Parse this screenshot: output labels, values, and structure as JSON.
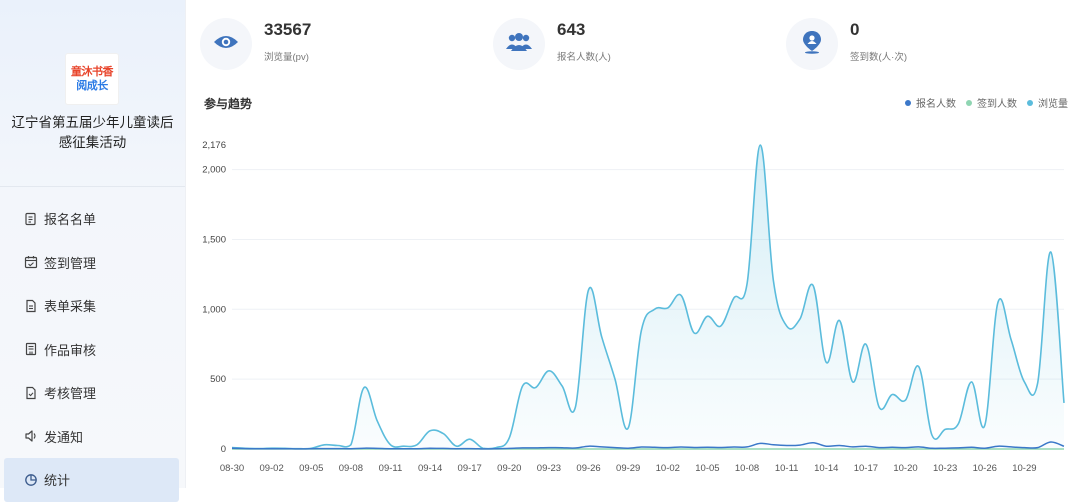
{
  "sidebar": {
    "logo_line1": "童沐书香",
    "logo_line2": "阅成长",
    "title": "辽宁省第五届少年儿童读后感征集活动",
    "items": [
      {
        "label": "报名名单",
        "icon": "list-icon"
      },
      {
        "label": "签到管理",
        "icon": "calendar-check-icon"
      },
      {
        "label": "表单采集",
        "icon": "form-icon"
      },
      {
        "label": "作品审核",
        "icon": "document-review-icon"
      },
      {
        "label": "考核管理",
        "icon": "assessment-icon"
      },
      {
        "label": "发通知",
        "icon": "speaker-icon"
      },
      {
        "label": "统计",
        "icon": "pie-chart-icon"
      }
    ],
    "active_item": "统计"
  },
  "stats": [
    {
      "value": "33567",
      "label": "浏览量(pv)",
      "icon": "eye-icon"
    },
    {
      "value": "643",
      "label": "报名人数(人)",
      "icon": "users-icon"
    },
    {
      "value": "0",
      "label": "签到数(人·次)",
      "icon": "location-person-icon"
    }
  ],
  "chart_title": "参与趋势",
  "colors": {
    "signup": "#3b78c9",
    "checkin": "#8fd5b2",
    "views": "#5bbcdc"
  },
  "chart_data": {
    "type": "area",
    "title": "参与趋势",
    "legend": [
      "报名人数",
      "签到人数",
      "浏览量"
    ],
    "legend_position": "top-right",
    "ylim": [
      0,
      2176
    ],
    "yticks": [
      0,
      500,
      1000,
      1500,
      2000,
      2176
    ],
    "ytick_labels": [
      "0",
      "500",
      "1,000",
      "1,500",
      "2,000",
      "2,176"
    ],
    "xtick_labels": [
      "08-30",
      "09-02",
      "09-05",
      "09-08",
      "09-11",
      "09-14",
      "09-17",
      "09-20",
      "09-23",
      "09-26",
      "09-29",
      "10-02",
      "10-05",
      "10-08",
      "10-11",
      "10-14",
      "10-17",
      "10-20",
      "10-23",
      "10-26",
      "10-29"
    ],
    "x_start": "08-30",
    "series": [
      {
        "name": "浏览量",
        "values": [
          10,
          5,
          3,
          6,
          5,
          2,
          5,
          30,
          25,
          30,
          440,
          200,
          30,
          20,
          30,
          130,
          110,
          20,
          70,
          5,
          10,
          80,
          450,
          440,
          560,
          450,
          300,
          1140,
          800,
          500,
          150,
          850,
          1000,
          1010,
          1100,
          830,
          950,
          880,
          1080,
          1180,
          2176,
          1200,
          880,
          930,
          1170,
          620,
          920,
          480,
          750,
          300,
          390,
          350,
          590,
          100,
          140,
          180,
          480,
          170,
          1050,
          780,
          480,
          470,
          1410,
          330
        ]
      },
      {
        "name": "报名人数",
        "values": [
          5,
          3,
          2,
          2,
          2,
          1,
          2,
          3,
          3,
          2,
          6,
          4,
          2,
          2,
          2,
          5,
          4,
          2,
          3,
          1,
          2,
          4,
          8,
          8,
          10,
          9,
          7,
          20,
          15,
          10,
          6,
          14,
          12,
          10,
          14,
          11,
          12,
          11,
          14,
          15,
          40,
          30,
          25,
          28,
          45,
          20,
          25,
          15,
          20,
          10,
          12,
          10,
          15,
          5,
          6,
          8,
          12,
          6,
          20,
          15,
          10,
          10,
          50,
          20
        ]
      },
      {
        "name": "签到人数",
        "values": [
          0,
          0,
          0,
          0,
          0,
          0,
          0,
          0,
          0,
          0,
          0,
          0,
          0,
          0,
          0,
          0,
          0,
          0,
          0,
          0,
          0,
          0,
          0,
          0,
          0,
          0,
          0,
          0,
          0,
          0,
          0,
          0,
          0,
          0,
          0,
          0,
          0,
          0,
          0,
          0,
          0,
          0,
          0,
          0,
          0,
          0,
          0,
          0,
          0,
          0,
          0,
          0,
          0,
          0,
          0,
          0,
          0,
          0,
          0,
          0,
          0,
          0,
          0,
          0
        ]
      }
    ]
  }
}
